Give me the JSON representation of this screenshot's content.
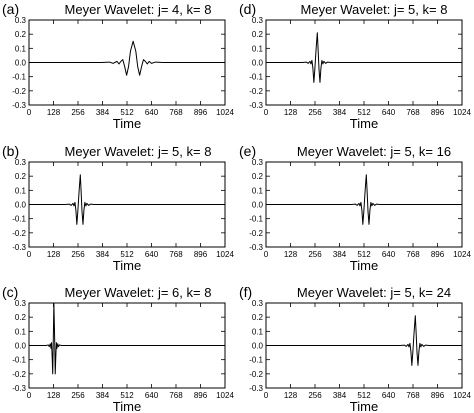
{
  "chart_data": [
    {
      "type": "line",
      "panel_label": "(a)",
      "title": "Meyer Wavelet: j= 4, k=  8",
      "xlabel": "Time",
      "ylabel": "",
      "xlim": [
        0,
        1024
      ],
      "ylim": [
        -0.3,
        0.3
      ],
      "xticks": [
        "0",
        "128",
        "256",
        "384",
        "512",
        "640",
        "768",
        "896",
        "1024"
      ],
      "yticks": [
        "0.3",
        "0.2",
        "0.1",
        "0.0",
        "-0.1",
        "-0.2",
        "-0.3"
      ],
      "x": [
        0,
        380,
        420,
        440,
        460,
        470,
        480,
        490,
        500,
        510,
        520,
        530,
        544,
        558,
        568,
        578,
        588,
        598,
        608,
        618,
        628,
        640,
        660,
        700,
        1024
      ],
      "y": [
        0,
        0,
        0.003,
        -0.006,
        0.008,
        -0.01,
        0.008,
        0.02,
        -0.03,
        -0.09,
        -0.03,
        0.08,
        0.15,
        0.08,
        -0.03,
        -0.09,
        -0.03,
        0.02,
        0.008,
        -0.01,
        0.008,
        -0.006,
        0.003,
        0,
        0
      ]
    },
    {
      "type": "line",
      "panel_label": "(d)",
      "title": "Meyer Wavelet: j= 5, k=  8",
      "xlabel": "Time",
      "ylabel": "",
      "xlim": [
        0,
        1024
      ],
      "ylim": [
        -0.3,
        0.3
      ],
      "xticks": [
        "0",
        "128",
        "256",
        "384",
        "512",
        "640",
        "768",
        "896",
        "1024"
      ],
      "yticks": [
        "0.3",
        "0.2",
        "0.1",
        "0.0",
        "-0.1",
        "-0.2",
        "-0.3"
      ],
      "x": [
        0,
        190,
        210,
        220,
        230,
        235,
        240,
        245,
        250,
        255,
        262,
        268,
        272,
        277,
        282,
        287,
        292,
        297,
        302,
        312,
        322,
        340,
        1024
      ],
      "y": [
        0,
        0,
        0.003,
        -0.006,
        0.008,
        -0.01,
        0.015,
        -0.04,
        -0.14,
        -0.05,
        0.1,
        0.21,
        0.1,
        -0.05,
        -0.14,
        -0.04,
        0.015,
        -0.01,
        0.008,
        -0.006,
        0.003,
        0,
        0
      ]
    },
    {
      "type": "line",
      "panel_label": "(b)",
      "title": "Meyer Wavelet: j= 5, k=  8",
      "xlabel": "Time",
      "ylabel": "",
      "xlim": [
        0,
        1024
      ],
      "ylim": [
        -0.3,
        0.3
      ],
      "xticks": [
        "0",
        "128",
        "256",
        "384",
        "512",
        "640",
        "768",
        "896",
        "1024"
      ],
      "yticks": [
        "0.3",
        "0.2",
        "0.1",
        "0.0",
        "-0.1",
        "-0.2",
        "-0.3"
      ],
      "x": [
        0,
        190,
        210,
        220,
        230,
        235,
        240,
        245,
        250,
        255,
        262,
        268,
        272,
        277,
        282,
        287,
        292,
        297,
        302,
        312,
        322,
        340,
        1024
      ],
      "y": [
        0,
        0,
        0.003,
        -0.006,
        0.008,
        -0.01,
        0.015,
        -0.04,
        -0.14,
        -0.05,
        0.1,
        0.21,
        0.1,
        -0.05,
        -0.14,
        -0.04,
        0.015,
        -0.01,
        0.008,
        -0.006,
        0.003,
        0,
        0
      ]
    },
    {
      "type": "line",
      "panel_label": "(e)",
      "title": "Meyer Wavelet: j= 5, k= 16",
      "xlabel": "Time",
      "ylabel": "",
      "xlim": [
        0,
        1024
      ],
      "ylim": [
        -0.3,
        0.3
      ],
      "xticks": [
        "0",
        "128",
        "256",
        "384",
        "512",
        "640",
        "768",
        "896",
        "1024"
      ],
      "yticks": [
        "0.3",
        "0.2",
        "0.1",
        "0.0",
        "-0.1",
        "-0.2",
        "-0.3"
      ],
      "x": [
        0,
        446,
        466,
        476,
        486,
        491,
        496,
        501,
        506,
        511,
        518,
        524,
        528,
        533,
        538,
        543,
        548,
        553,
        558,
        568,
        578,
        596,
        1024
      ],
      "y": [
        0,
        0,
        0.003,
        -0.006,
        0.008,
        -0.01,
        0.015,
        -0.04,
        -0.14,
        -0.05,
        0.1,
        0.21,
        0.1,
        -0.05,
        -0.14,
        -0.04,
        0.015,
        -0.01,
        0.008,
        -0.006,
        0.003,
        0,
        0
      ]
    },
    {
      "type": "line",
      "panel_label": "(c)",
      "title": "Meyer Wavelet: j= 6, k=  8",
      "xlabel": "Time",
      "ylabel": "",
      "xlim": [
        0,
        1024
      ],
      "ylim": [
        -0.3,
        0.3
      ],
      "xticks": [
        "0",
        "128",
        "256",
        "384",
        "512",
        "640",
        "768",
        "896",
        "1024"
      ],
      "yticks": [
        "0.3",
        "0.2",
        "0.1",
        "0.0",
        "-0.1",
        "-0.2",
        "-0.3"
      ],
      "x": [
        0,
        90,
        100,
        106,
        111,
        115,
        118,
        121,
        124,
        127,
        130,
        134,
        137,
        140,
        143,
        146,
        150,
        154,
        160,
        170,
        1024
      ],
      "y": [
        0,
        0,
        0.004,
        -0.008,
        0.012,
        -0.02,
        0.02,
        -0.08,
        -0.2,
        0.05,
        0.3,
        0.05,
        -0.2,
        -0.08,
        0.02,
        -0.02,
        0.012,
        -0.008,
        0.004,
        0,
        0
      ]
    },
    {
      "type": "line",
      "panel_label": "(f)",
      "title": "Meyer Wavelet: j= 5, k= 24",
      "xlabel": "Time",
      "ylabel": "",
      "xlim": [
        0,
        1024
      ],
      "ylim": [
        -0.3,
        0.3
      ],
      "xticks": [
        "0",
        "128",
        "256",
        "384",
        "512",
        "640",
        "768",
        "896",
        "1024"
      ],
      "yticks": [
        "0.3",
        "0.2",
        "0.1",
        "0.0",
        "-0.1",
        "-0.2",
        "-0.3"
      ],
      "x": [
        0,
        702,
        722,
        732,
        742,
        747,
        752,
        757,
        762,
        767,
        774,
        780,
        784,
        789,
        794,
        799,
        804,
        809,
        814,
        824,
        834,
        852,
        1024
      ],
      "y": [
        0,
        0,
        0.003,
        -0.006,
        0.008,
        -0.01,
        0.015,
        -0.04,
        -0.14,
        -0.05,
        0.1,
        0.21,
        0.1,
        -0.05,
        -0.14,
        -0.04,
        0.015,
        -0.01,
        0.008,
        -0.006,
        0.003,
        0,
        0
      ]
    }
  ]
}
